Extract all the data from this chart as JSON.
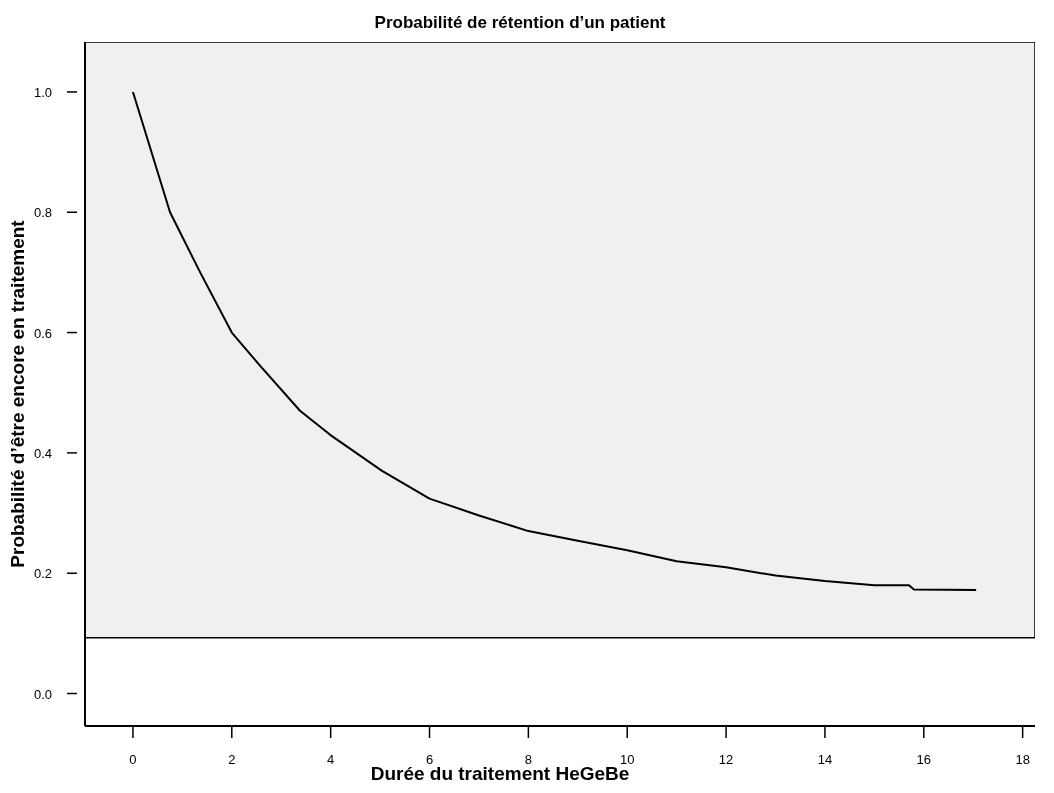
{
  "chart_data": {
    "type": "line",
    "title": "Probabilité de rétention d’un patient",
    "xlabel": "Durée du traitement  HeGeBe",
    "ylabel": "Probabilité d’être encore en traitement",
    "x": [
      0,
      0.3,
      0.75,
      1.36,
      2,
      2.57,
      3.38,
      3.99,
      5.04,
      6,
      7,
      8,
      9,
      10,
      11,
      12,
      13,
      14,
      15,
      15.7,
      15.8,
      17.06
    ],
    "series": [
      {
        "color": "#000000",
        "values": [
          1.0,
          0.92,
          0.8,
          0.7,
          0.6,
          0.545,
          0.47,
          0.43,
          0.37,
          0.324,
          0.296,
          0.27,
          0.254,
          0.238,
          0.22,
          0.21,
          0.196,
          0.187,
          0.18,
          0.18,
          0.173,
          0.172
        ]
      }
    ],
    "xlim": [
      -0.97,
      18.25
    ],
    "xticks": [
      0,
      2,
      4,
      6,
      8,
      10,
      12,
      14,
      16,
      18
    ],
    "ylim": [
      -0.054,
      1.083
    ],
    "yticks": [
      {
        "value": 0,
        "label": "0.0"
      },
      0.2,
      0.4,
      0.6,
      0.8,
      {
        "value": 1,
        "label": "1.0"
      }
    ],
    "bands": [
      {
        "axis": "y",
        "from": 0.0925,
        "to": 1.083,
        "color": "#f0f0f0"
      }
    ],
    "grid": false,
    "legend": false,
    "marker": "none",
    "line_style": "solid"
  }
}
